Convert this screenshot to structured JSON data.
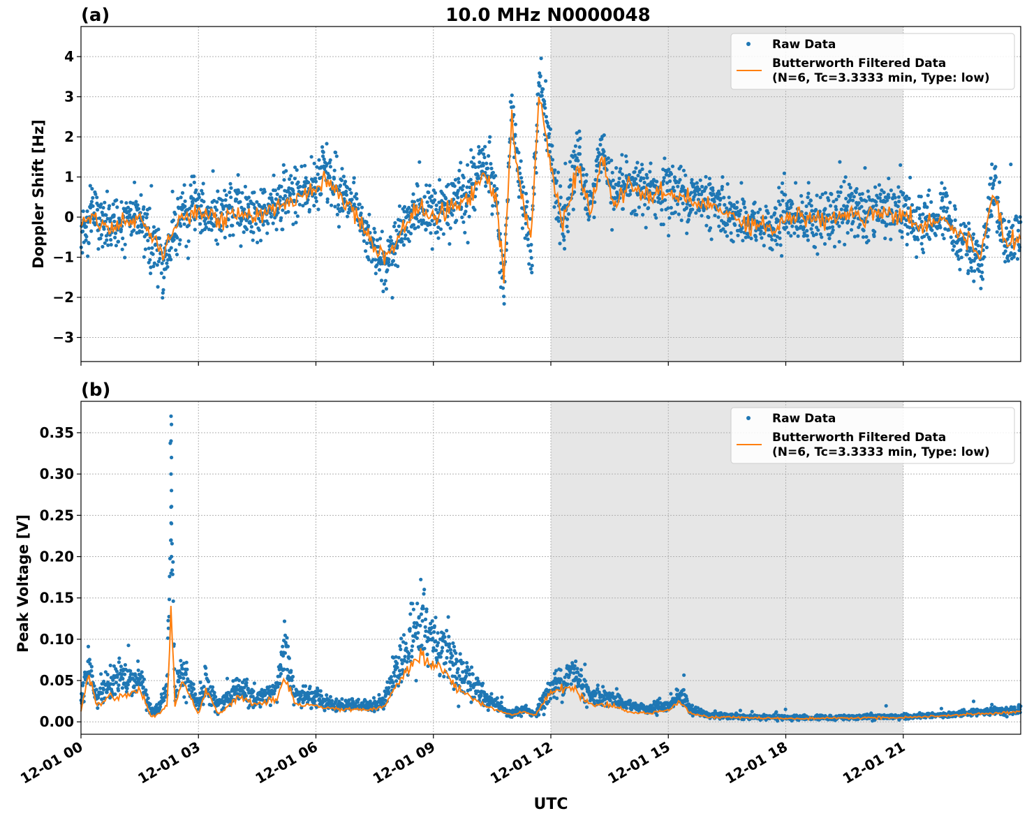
{
  "figure": {
    "title": "10.0 MHz N0000048",
    "xlabel": "UTC",
    "shaded_region": {
      "start_hour": 12,
      "end_hour": 21,
      "color": "#e6e6e6"
    }
  },
  "colors": {
    "raw": "#1f77b4",
    "filtered": "#ff7f0e",
    "grid": "#b0b0b0"
  },
  "legend": {
    "raw_label": "Raw Data",
    "filtered_label_line1": "Butterworth Filtered Data",
    "filtered_label_line2": "(N=6, Tc=3.3333 min, Type: low)"
  },
  "x_ticks": [
    "12-01 00",
    "12-01 03",
    "12-01 06",
    "12-01 09",
    "12-01 12",
    "12-01 15",
    "12-01 18",
    "12-01 21"
  ],
  "chart_data": [
    {
      "panel": "(a)",
      "type": "scatter",
      "title": "10.0 MHz N0000048",
      "xlabel": "",
      "ylabel": "Doppler Shift [Hz]",
      "x_unit": "hours UTC on 12-01",
      "xlim": [
        0,
        24
      ],
      "ylim": [
        -3.6,
        4.75
      ],
      "y_ticks": [
        -3,
        -2,
        -1,
        0,
        1,
        2,
        3,
        4
      ],
      "y_tick_labels": [
        "−3",
        "−2",
        "−1",
        "0",
        "1",
        "2",
        "3",
        "4"
      ],
      "grid": true,
      "legend_position": "top-right",
      "series": [
        {
          "name": "Raw Data",
          "style": "points",
          "x": [
            0,
            0.3,
            0.5,
            1,
            1.5,
            2,
            2.1,
            2.5,
            3,
            3.5,
            4,
            4.5,
            5,
            5.5,
            6,
            6.2,
            6.5,
            7,
            7.5,
            7.75,
            8,
            8.5,
            9,
            9.5,
            10,
            10.3,
            10.6,
            10.8,
            11,
            11.2,
            11.5,
            11.7,
            12,
            12.3,
            12.7,
            13,
            13.3,
            13.6,
            14,
            14.5,
            15,
            15.5,
            16,
            16.5,
            17,
            17.7,
            18,
            18.5,
            19,
            19.5,
            20,
            20.5,
            21,
            21.5,
            22,
            22.5,
            23,
            23.3,
            23.6,
            24
          ],
          "y": [
            -0.4,
            0.2,
            -0.2,
            -0.3,
            0.1,
            -1.0,
            -1.2,
            0.0,
            0.3,
            -0.1,
            0.2,
            0.0,
            0.3,
            0.6,
            0.8,
            1.2,
            0.8,
            0.1,
            -0.8,
            -1.2,
            -0.8,
            0.2,
            0.0,
            0.3,
            0.8,
            1.5,
            0.5,
            -1.8,
            2.8,
            1.0,
            -0.8,
            3.5,
            1.5,
            -0.2,
            1.6,
            0.0,
            1.8,
            0.4,
            0.9,
            0.6,
            0.7,
            0.5,
            0.4,
            0.1,
            -0.1,
            -0.3,
            0.1,
            0.0,
            -0.1,
            0.2,
            0.1,
            0.3,
            0.0,
            -0.2,
            0.1,
            -0.6,
            -1.1,
            0.8,
            -0.7,
            -0.5
          ]
        },
        {
          "name": "Butterworth Filtered Data (N=6, Tc=3.3333 min, Type: low)",
          "style": "line",
          "x": [
            0,
            0.3,
            0.5,
            1,
            1.5,
            2,
            2.1,
            2.5,
            3,
            3.5,
            4,
            4.5,
            5,
            5.5,
            6,
            6.2,
            6.5,
            7,
            7.5,
            7.75,
            8,
            8.5,
            9,
            9.5,
            10,
            10.3,
            10.6,
            10.8,
            11,
            11.2,
            11.5,
            11.7,
            12,
            12.3,
            12.7,
            13,
            13.3,
            13.6,
            14,
            14.5,
            15,
            15.5,
            16,
            16.5,
            17,
            17.7,
            18,
            18.5,
            19,
            19.5,
            20,
            20.5,
            21,
            21.5,
            22,
            22.5,
            23,
            23.3,
            23.6,
            24
          ],
          "y": [
            -0.3,
            0.1,
            -0.2,
            -0.2,
            0.0,
            -0.8,
            -1.0,
            0.0,
            0.2,
            -0.1,
            0.1,
            0.0,
            0.2,
            0.5,
            0.7,
            1.0,
            0.7,
            0.1,
            -0.7,
            -1.0,
            -0.7,
            0.2,
            0.0,
            0.2,
            0.6,
            1.2,
            0.4,
            -1.5,
            2.5,
            0.8,
            -0.6,
            3.2,
            1.2,
            -0.2,
            1.3,
            0.0,
            1.5,
            0.3,
            0.8,
            0.5,
            0.6,
            0.4,
            0.3,
            0.1,
            -0.1,
            -0.3,
            0.0,
            0.0,
            -0.1,
            0.1,
            0.0,
            0.2,
            0.0,
            -0.2,
            0.0,
            -0.5,
            -0.9,
            0.7,
            -0.6,
            -0.5
          ]
        }
      ]
    },
    {
      "panel": "(b)",
      "type": "scatter",
      "xlabel": "UTC",
      "ylabel": "Peak Voltage [V]",
      "x_unit": "hours UTC on 12-01",
      "xlim": [
        0,
        24
      ],
      "ylim": [
        -0.015,
        0.388
      ],
      "y_ticks": [
        0.0,
        0.05,
        0.1,
        0.15,
        0.2,
        0.25,
        0.3,
        0.35
      ],
      "y_tick_labels": [
        "0.00",
        "0.05",
        "0.10",
        "0.15",
        "0.20",
        "0.25",
        "0.30",
        "0.35"
      ],
      "grid": true,
      "legend_position": "top-right",
      "series": [
        {
          "name": "Raw Data",
          "style": "points",
          "x": [
            0,
            0.2,
            0.4,
            0.7,
            1,
            1.5,
            1.8,
            2,
            2.2,
            2.3,
            2.4,
            2.6,
            3,
            3.2,
            3.5,
            3.8,
            4,
            4.5,
            5,
            5.2,
            5.5,
            6,
            6.5,
            7,
            7.5,
            7.8,
            8,
            8.3,
            8.7,
            9,
            9.3,
            9.6,
            10,
            10.3,
            10.6,
            11,
            11.3,
            11.6,
            12,
            12.3,
            12.6,
            13,
            13.5,
            14,
            14.5,
            15,
            15.3,
            15.6,
            16,
            17,
            18,
            19,
            20,
            21,
            22,
            23,
            24
          ],
          "y": [
            0.02,
            0.08,
            0.03,
            0.04,
            0.05,
            0.05,
            0.01,
            0.02,
            0.04,
            0.25,
            0.03,
            0.06,
            0.02,
            0.05,
            0.02,
            0.03,
            0.04,
            0.03,
            0.04,
            0.09,
            0.03,
            0.03,
            0.02,
            0.02,
            0.02,
            0.03,
            0.06,
            0.08,
            0.12,
            0.1,
            0.09,
            0.06,
            0.05,
            0.03,
            0.02,
            0.01,
            0.015,
            0.01,
            0.04,
            0.05,
            0.06,
            0.03,
            0.03,
            0.02,
            0.015,
            0.02,
            0.035,
            0.015,
            0.008,
            0.006,
            0.005,
            0.005,
            0.006,
            0.006,
            0.008,
            0.012,
            0.015
          ]
        },
        {
          "name": "Butterworth Filtered Data (N=6, Tc=3.3333 min, Type: low)",
          "style": "line",
          "x": [
            0,
            0.2,
            0.4,
            0.7,
            1,
            1.5,
            1.8,
            2,
            2.2,
            2.3,
            2.4,
            2.6,
            3,
            3.2,
            3.5,
            3.8,
            4,
            4.5,
            5,
            5.2,
            5.5,
            6,
            6.5,
            7,
            7.5,
            7.8,
            8,
            8.3,
            8.7,
            9,
            9.3,
            9.6,
            10,
            10.3,
            10.6,
            11,
            11.3,
            11.6,
            12,
            12.3,
            12.6,
            13,
            13.5,
            14,
            14.5,
            15,
            15.3,
            15.6,
            16,
            17,
            18,
            19,
            20,
            21,
            22,
            23,
            24
          ],
          "y": [
            0.015,
            0.06,
            0.02,
            0.03,
            0.03,
            0.04,
            0.005,
            0.01,
            0.02,
            0.14,
            0.02,
            0.05,
            0.01,
            0.04,
            0.01,
            0.02,
            0.03,
            0.02,
            0.03,
            0.05,
            0.02,
            0.02,
            0.015,
            0.015,
            0.015,
            0.02,
            0.04,
            0.06,
            0.08,
            0.07,
            0.06,
            0.04,
            0.03,
            0.02,
            0.015,
            0.008,
            0.012,
            0.008,
            0.035,
            0.04,
            0.04,
            0.02,
            0.02,
            0.012,
            0.01,
            0.015,
            0.025,
            0.01,
            0.006,
            0.005,
            0.004,
            0.004,
            0.005,
            0.005,
            0.007,
            0.01,
            0.012
          ]
        }
      ]
    }
  ]
}
